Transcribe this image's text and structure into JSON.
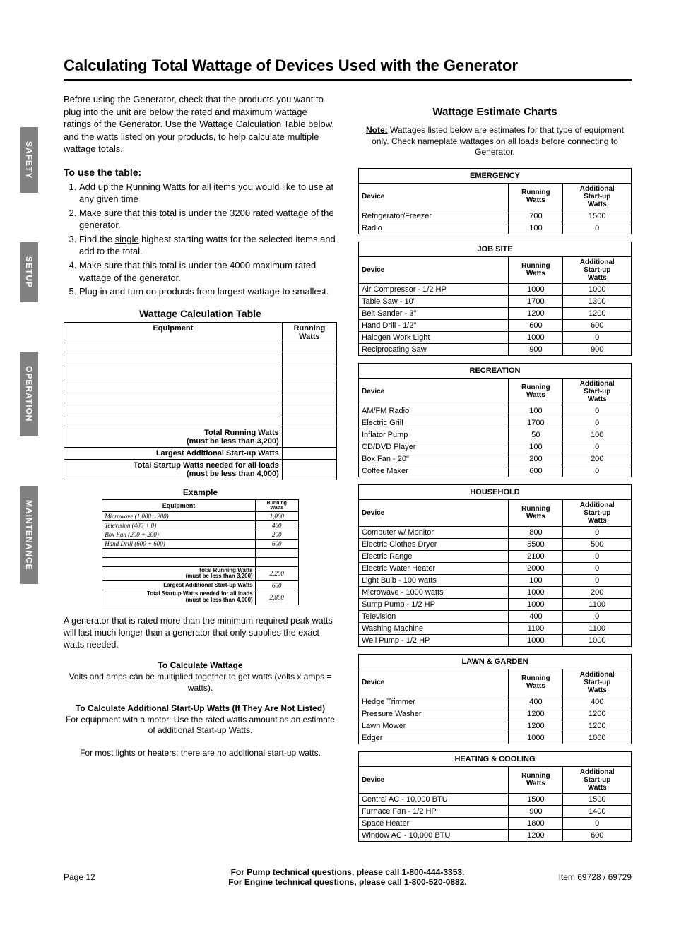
{
  "page_title": "Calculating Total Wattage of Devices Used with the Generator",
  "intro": "Before using the Generator, check that the products you want to plug into the unit are below the rated and maximum wattage ratings of the Generator. Use the Wattage Calculation Table below, and the watts listed on your products, to help calculate multiple wattage totals.",
  "use_table_heading": "To use the table:",
  "steps": [
    "Add up the Running Watts for all items you would like to use at any given time",
    "Make sure that this total is under the 3200 rated wattage of the generator.",
    "Find the single highest starting watts for the selected items and add to the total.",
    "Make sure that this total is under the 4000 maximum rated wattage of the generator.",
    "Plug in and turn on products from largest wattage to smallest."
  ],
  "calc_table": {
    "title": "Wattage Calculation Table",
    "col1": "Equipment",
    "col2": "Running Watts",
    "blank_rows": 7,
    "row_total_running": "Total Running Watts",
    "row_total_running_sub": "(must be less than 3,200)",
    "row_largest": "Largest Additional Start-up Watts",
    "row_startup": "Total Startup Watts needed for all loads",
    "row_startup_sub": "(must be less than 4,000)"
  },
  "example": {
    "title": "Example",
    "col1": "Equipment",
    "col2": "Running Watts",
    "rows": [
      {
        "name": "Microwave (1,000 +200)",
        "val": "1,000"
      },
      {
        "name": "Television (400 + 0)",
        "val": "400"
      },
      {
        "name": "Box Fan (200 + 200)",
        "val": "200"
      },
      {
        "name": "Hand Drill (600 + 600)",
        "val": "600"
      }
    ],
    "blank_rows": 2,
    "total_running_label": "Total Running Watts",
    "total_running_sub": "(must be less than 3,200)",
    "total_running_val": "2,200",
    "largest_label": "Largest Additional Start-up Watts",
    "largest_val": "600",
    "startup_label": "Total Startup Watts needed for all loads",
    "startup_sub": "(must be less than 4,000)",
    "startup_val": "2,800"
  },
  "para_after_example": "A generator that is rated more than the minimum required peak watts will last much longer than a generator that only supplies the exact watts needed.",
  "calc_wattage_head": "To Calculate Wattage",
  "calc_wattage_body": "Volts and amps can be multiplied together to get watts (volts x amps = watts).",
  "calc_startup_head": "To Calculate Additional Start-Up Watts (If They Are Not Listed)",
  "calc_startup_body1": "For equipment with a motor: Use the rated watts amount as an estimate of additional Start-up Watts.",
  "calc_startup_body2": "For most lights or heaters: there are no additional start-up watts.",
  "right_heading": "Wattage Estimate Charts",
  "right_note_label": "Note:",
  "right_note_body": " Wattages listed below are estimates for that type of equipment only. Check nameplate wattages on all loads before connecting to Generator.",
  "col_device": "Device",
  "col_running": "Running Watts",
  "col_startup": "Additional Start-up Watts",
  "categories": [
    {
      "name": "EMERGENCY",
      "rows": [
        {
          "d": "Refrigerator/Freezer",
          "r": "700",
          "s": "1500"
        },
        {
          "d": "Radio",
          "r": "100",
          "s": "0"
        }
      ]
    },
    {
      "name": "JOB SITE",
      "rows": [
        {
          "d": "Air Compressor - 1/2 HP",
          "r": "1000",
          "s": "1000"
        },
        {
          "d": "Table Saw - 10\"",
          "r": "1700",
          "s": "1300"
        },
        {
          "d": "Belt Sander - 3\"",
          "r": "1200",
          "s": "1200"
        },
        {
          "d": "Hand Drill - 1/2\"",
          "r": "600",
          "s": "600"
        },
        {
          "d": "Halogen Work Light",
          "r": "1000",
          "s": "0"
        },
        {
          "d": "Reciprocating Saw",
          "r": "900",
          "s": "900"
        }
      ]
    },
    {
      "name": "RECREATION",
      "rows": [
        {
          "d": "AM/FM Radio",
          "r": "100",
          "s": "0"
        },
        {
          "d": "Electric Grill",
          "r": "1700",
          "s": "0"
        },
        {
          "d": "Inflator Pump",
          "r": "50",
          "s": "100"
        },
        {
          "d": "CD/DVD Player",
          "r": "100",
          "s": "0"
        },
        {
          "d": "Box Fan - 20\"",
          "r": "200",
          "s": "200"
        },
        {
          "d": "Coffee Maker",
          "r": "600",
          "s": "0"
        }
      ]
    },
    {
      "name": "HOUSEHOLD",
      "rows": [
        {
          "d": "Computer w/ Monitor",
          "r": "800",
          "s": "0"
        },
        {
          "d": "Electric Clothes Dryer",
          "r": "5500",
          "s": "500"
        },
        {
          "d": "Electric Range",
          "r": "2100",
          "s": "0"
        },
        {
          "d": "Electric Water Heater",
          "r": "2000",
          "s": "0"
        },
        {
          "d": "Light Bulb - 100 watts",
          "r": "100",
          "s": "0"
        },
        {
          "d": "Microwave - 1000 watts",
          "r": "1000",
          "s": "200"
        },
        {
          "d": "Sump Pump - 1/2 HP",
          "r": "1000",
          "s": "1100"
        },
        {
          "d": "Television",
          "r": "400",
          "s": "0"
        },
        {
          "d": "Washing Machine",
          "r": "1100",
          "s": "1100"
        },
        {
          "d": "Well Pump - 1/2 HP",
          "r": "1000",
          "s": "1000"
        }
      ]
    },
    {
      "name": "LAWN & GARDEN",
      "rows": [
        {
          "d": "Hedge Trimmer",
          "r": "400",
          "s": "400"
        },
        {
          "d": "Pressure Washer",
          "r": "1200",
          "s": "1200"
        },
        {
          "d": "Lawn Mower",
          "r": "1200",
          "s": "1200"
        },
        {
          "d": "Edger",
          "r": "1000",
          "s": "1000"
        }
      ]
    },
    {
      "name": "HEATING & COOLING",
      "rows": [
        {
          "d": "Central AC - 10,000 BTU",
          "r": "1500",
          "s": "1500"
        },
        {
          "d": "Furnace Fan - 1/2 HP",
          "r": "900",
          "s": "1400"
        },
        {
          "d": "Space Heater",
          "r": "1800",
          "s": "0"
        },
        {
          "d": "Window AC - 10,000 BTU",
          "r": "1200",
          "s": "600"
        }
      ]
    }
  ],
  "tabs": [
    "SAFETY",
    "SETUP",
    "OPERATION",
    "MAINTENANCE"
  ],
  "footer": {
    "page": "Page 12",
    "center1": "For Pump technical questions, please call 1-800-444-3353.",
    "center2": "For Engine technical questions, please call 1-800-520-0882.",
    "item": "Item 69728 / 69729"
  }
}
